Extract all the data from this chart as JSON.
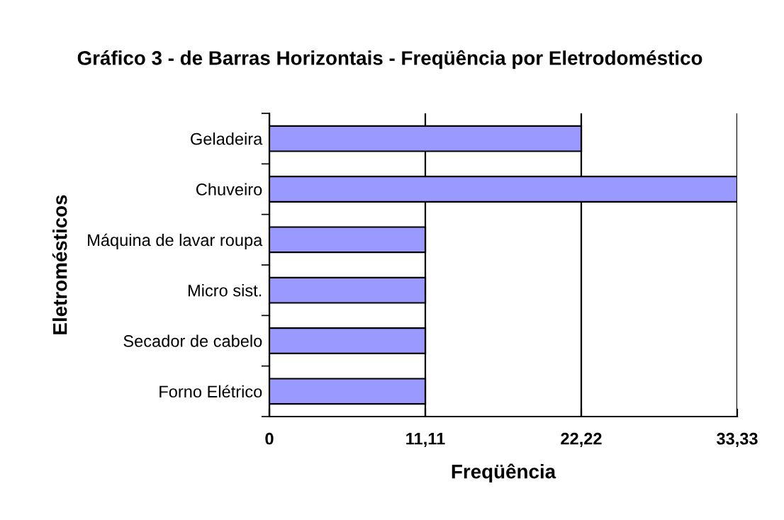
{
  "chart_data": {
    "type": "bar",
    "orientation": "horizontal",
    "title": "Gráfico 3 - de Barras Horizontais - Freqüência por Eletrodoméstico",
    "xlabel": "Freqüência",
    "ylabel": "Eletromésticos",
    "categories": [
      "Geladeira",
      "Chuveiro",
      "Máquina de lavar roupa",
      "Micro sist.",
      "Secador de cabelo",
      "Forno Elétrico"
    ],
    "values": [
      22.22,
      33.33,
      11.11,
      11.11,
      11.11,
      11.11
    ],
    "color": "#9999ff",
    "xlim": [
      0,
      33.33
    ],
    "xticks": [
      0,
      {
        "value": 11.11,
        "label": "11,11"
      },
      {
        "value": 22.22,
        "label": "22,22"
      },
      {
        "value": 33.33,
        "label": "33,33"
      }
    ],
    "grid": "x",
    "legend": false
  }
}
